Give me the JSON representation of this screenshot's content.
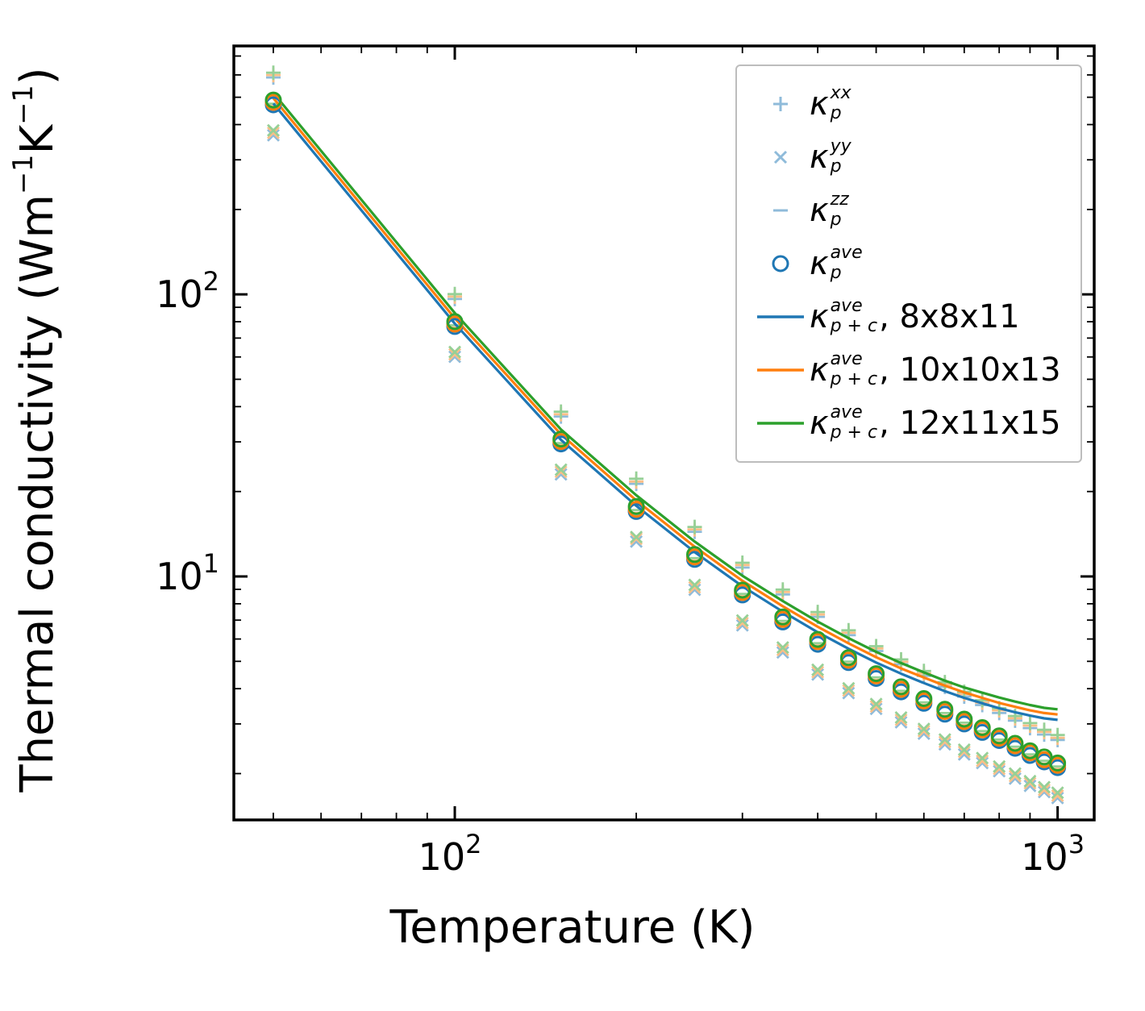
{
  "chart_data": {
    "type": "scatter",
    "title": "",
    "xlabel": "Temperature (K)",
    "ylabel": "Thermal conductivity (Wm⁻¹K⁻¹)",
    "ylabel_parts": [
      {
        "text": "Thermal conductivity (Wm"
      },
      {
        "sup": "−1"
      },
      {
        "text": "K"
      },
      {
        "sup": "−1"
      },
      {
        "text": ")"
      }
    ],
    "xscale": "log",
    "yscale": "log",
    "xlim": [
      43,
      1150
    ],
    "ylim": [
      1.37,
      760
    ],
    "grid": false,
    "legend_position": "upper right",
    "x_ticks": [
      {
        "value": 100,
        "base": "10",
        "exp": "2"
      },
      {
        "value": 1000,
        "base": "10",
        "exp": "3"
      }
    ],
    "y_ticks": [
      {
        "value": 10,
        "base": "10",
        "exp": "1"
      },
      {
        "value": 100,
        "base": "10",
        "exp": "2"
      }
    ],
    "x_minor_ticks": [
      50,
      60,
      70,
      80,
      90,
      200,
      300,
      400,
      500,
      600,
      700,
      800,
      900
    ],
    "y_minor_ticks": [
      2,
      3,
      4,
      5,
      6,
      7,
      8,
      9,
      20,
      30,
      40,
      50,
      60,
      70,
      80,
      90,
      200,
      300,
      400,
      500,
      600,
      700
    ],
    "colors": {
      "blue": "#1f77b4",
      "orange": "#ff7f0e",
      "green": "#2ca02c",
      "blue_light": "#8fbbda",
      "orange_light": "#ffbf87",
      "green_light": "#96d096",
      "frame": "#000000",
      "legend_border": "#bdbdbd"
    },
    "temperatures": [
      50,
      100,
      150,
      200,
      250,
      300,
      350,
      400,
      450,
      500,
      550,
      600,
      650,
      700,
      750,
      800,
      850,
      900,
      950,
      1000
    ],
    "series": [
      {
        "name": "kappa-p-xx-8x8x11",
        "kind": "marker",
        "marker": "plus",
        "color": "#8fbbda",
        "values": [
          587.5,
          96.3,
          36.9,
          21.3,
          14.4,
          10.75,
          8.63,
          7.19,
          6.19,
          5.44,
          4.88,
          4.44,
          4.06,
          3.75,
          3.5,
          3.28,
          3.08,
          2.9,
          2.75,
          2.63
        ]
      },
      {
        "name": "kappa-p-xx-10x10x13",
        "kind": "marker",
        "marker": "plus",
        "color": "#ffbf87",
        "values": [
          599.3,
          98.2,
          37.6,
          21.7,
          14.69,
          10.97,
          8.8,
          7.33,
          6.31,
          5.55,
          4.98,
          4.53,
          4.14,
          3.83,
          3.57,
          3.35,
          3.14,
          2.96,
          2.81,
          2.68
        ]
      },
      {
        "name": "kappa-p-xx-12x11x15",
        "kind": "marker",
        "marker": "plus",
        "color": "#96d096",
        "values": [
          611.0,
          100.2,
          38.4,
          22.2,
          14.98,
          11.18,
          8.98,
          7.48,
          6.44,
          5.66,
          5.08,
          4.62,
          4.22,
          3.9,
          3.64,
          3.41,
          3.2,
          3.02,
          2.86,
          2.74
        ]
      },
      {
        "name": "kappa-p-yy-8x8x11",
        "kind": "marker",
        "marker": "x",
        "color": "#8fbbda",
        "values": [
          366.6,
          60.1,
          23.0,
          13.3,
          8.97,
          6.71,
          5.38,
          4.49,
          3.86,
          3.39,
          3.04,
          2.77,
          2.54,
          2.34,
          2.18,
          2.04,
          1.92,
          1.81,
          1.72,
          1.64
        ]
      },
      {
        "name": "kappa-p-yy-10x10x13",
        "kind": "marker",
        "marker": "x",
        "color": "#ffbf87",
        "values": [
          374.0,
          61.3,
          23.5,
          13.6,
          9.15,
          6.84,
          5.49,
          4.58,
          3.94,
          3.46,
          3.1,
          2.83,
          2.59,
          2.39,
          2.22,
          2.08,
          1.96,
          1.85,
          1.75,
          1.67
        ]
      },
      {
        "name": "kappa-p-yy-12x11x15",
        "kind": "marker",
        "marker": "x",
        "color": "#96d096",
        "values": [
          381.3,
          62.5,
          23.9,
          13.8,
          9.33,
          6.98,
          5.6,
          4.67,
          4.01,
          3.53,
          3.16,
          2.88,
          2.64,
          2.43,
          2.27,
          2.12,
          2.0,
          1.88,
          1.79,
          1.71
        ]
      },
      {
        "name": "kappa-p-zz-8x8x11",
        "kind": "marker",
        "marker": "minus",
        "color": "#8fbbda",
        "values": [
          455.9,
          74.7,
          28.6,
          16.5,
          11.16,
          8.34,
          6.69,
          5.58,
          4.8,
          4.22,
          3.78,
          3.44,
          3.15,
          2.91,
          2.72,
          2.54,
          2.39,
          2.25,
          2.13,
          2.04
        ]
      },
      {
        "name": "kappa-p-zz-10x10x13",
        "kind": "marker",
        "marker": "minus",
        "color": "#ffbf87",
        "values": [
          465.0,
          76.2,
          29.2,
          16.8,
          11.38,
          8.51,
          6.82,
          5.69,
          4.9,
          4.3,
          3.86,
          3.51,
          3.21,
          2.97,
          2.77,
          2.59,
          2.44,
          2.3,
          2.17,
          2.08
        ]
      },
      {
        "name": "kappa-p-zz-12x11x15",
        "kind": "marker",
        "marker": "minus",
        "color": "#96d096",
        "values": [
          474.1,
          77.7,
          29.7,
          17.2,
          11.61,
          8.67,
          6.96,
          5.8,
          4.99,
          4.39,
          3.93,
          3.58,
          3.28,
          3.03,
          2.83,
          2.64,
          2.49,
          2.34,
          2.22,
          2.12
        ]
      },
      {
        "name": "kappa-p-plus-c-ave-8x8x11",
        "kind": "line",
        "color": "#1f77b4",
        "values": [
          475.0,
          78.8,
          30.5,
          17.8,
          12.2,
          9.23,
          7.5,
          6.34,
          5.54,
          4.95,
          4.52,
          4.19,
          3.92,
          3.71,
          3.55,
          3.41,
          3.3,
          3.21,
          3.14,
          3.1
        ]
      },
      {
        "name": "kappa-p-plus-c-ave-10x10x13",
        "kind": "line",
        "color": "#ff7f0e",
        "values": [
          496.4,
          82.3,
          31.9,
          18.6,
          12.75,
          9.65,
          7.84,
          6.63,
          5.79,
          5.17,
          4.72,
          4.38,
          4.1,
          3.88,
          3.71,
          3.56,
          3.45,
          3.35,
          3.28,
          3.24
        ]
      },
      {
        "name": "kappa-p-plus-c-ave-12x11x15",
        "kind": "line",
        "color": "#2ca02c",
        "values": [
          517.8,
          85.9,
          33.2,
          19.4,
          13.3,
          10.06,
          8.18,
          6.91,
          6.04,
          5.4,
          4.93,
          4.57,
          4.27,
          4.04,
          3.87,
          3.72,
          3.6,
          3.5,
          3.42,
          3.38
        ]
      },
      {
        "name": "kappa-p-ave-8x8x11",
        "kind": "marker",
        "marker": "circle",
        "color": "#1f77b4",
        "values": [
          470.0,
          77.0,
          29.5,
          17.0,
          11.5,
          8.6,
          6.9,
          5.75,
          4.95,
          4.35,
          3.9,
          3.55,
          3.25,
          3.0,
          2.8,
          2.62,
          2.46,
          2.32,
          2.2,
          2.1
        ]
      },
      {
        "name": "kappa-p-ave-10x10x13",
        "kind": "marker",
        "marker": "circle",
        "color": "#ff7f0e",
        "values": [
          479.4,
          78.5,
          30.1,
          17.3,
          11.73,
          8.77,
          7.04,
          5.87,
          5.05,
          4.44,
          3.98,
          3.62,
          3.32,
          3.06,
          2.86,
          2.67,
          2.51,
          2.37,
          2.24,
          2.14
        ]
      },
      {
        "name": "kappa-p-ave-12x11x15",
        "kind": "marker",
        "marker": "circle",
        "color": "#2ca02c",
        "values": [
          488.8,
          80.1,
          30.7,
          17.7,
          11.96,
          8.94,
          7.18,
          5.98,
          5.15,
          4.52,
          4.06,
          3.69,
          3.38,
          3.12,
          2.91,
          2.72,
          2.56,
          2.41,
          2.29,
          2.18
        ]
      }
    ],
    "legend": [
      {
        "symbol": "plus",
        "color": "#8fbbda",
        "kappa": "κ",
        "kappa_sup": "xx",
        "kappa_sub": "p",
        "suffix": ""
      },
      {
        "symbol": "x",
        "color": "#8fbbda",
        "kappa": "κ",
        "kappa_sup": "yy",
        "kappa_sub": "p",
        "suffix": ""
      },
      {
        "symbol": "minus",
        "color": "#8fbbda",
        "kappa": "κ",
        "kappa_sup": "zz",
        "kappa_sub": "p",
        "suffix": ""
      },
      {
        "symbol": "circle",
        "color": "#1f77b4",
        "kappa": "κ",
        "kappa_sup": "ave",
        "kappa_sub": "p",
        "suffix": ""
      },
      {
        "symbol": "line",
        "color": "#1f77b4",
        "kappa": "κ",
        "kappa_sup": "ave",
        "kappa_sub": "p + c",
        "suffix": ", 8x8x11"
      },
      {
        "symbol": "line",
        "color": "#ff7f0e",
        "kappa": "κ",
        "kappa_sup": "ave",
        "kappa_sub": "p + c",
        "suffix": ", 10x10x13"
      },
      {
        "symbol": "line",
        "color": "#2ca02c",
        "kappa": "κ",
        "kappa_sup": "ave",
        "kappa_sub": "p + c",
        "suffix": ", 12x11x15"
      }
    ]
  }
}
